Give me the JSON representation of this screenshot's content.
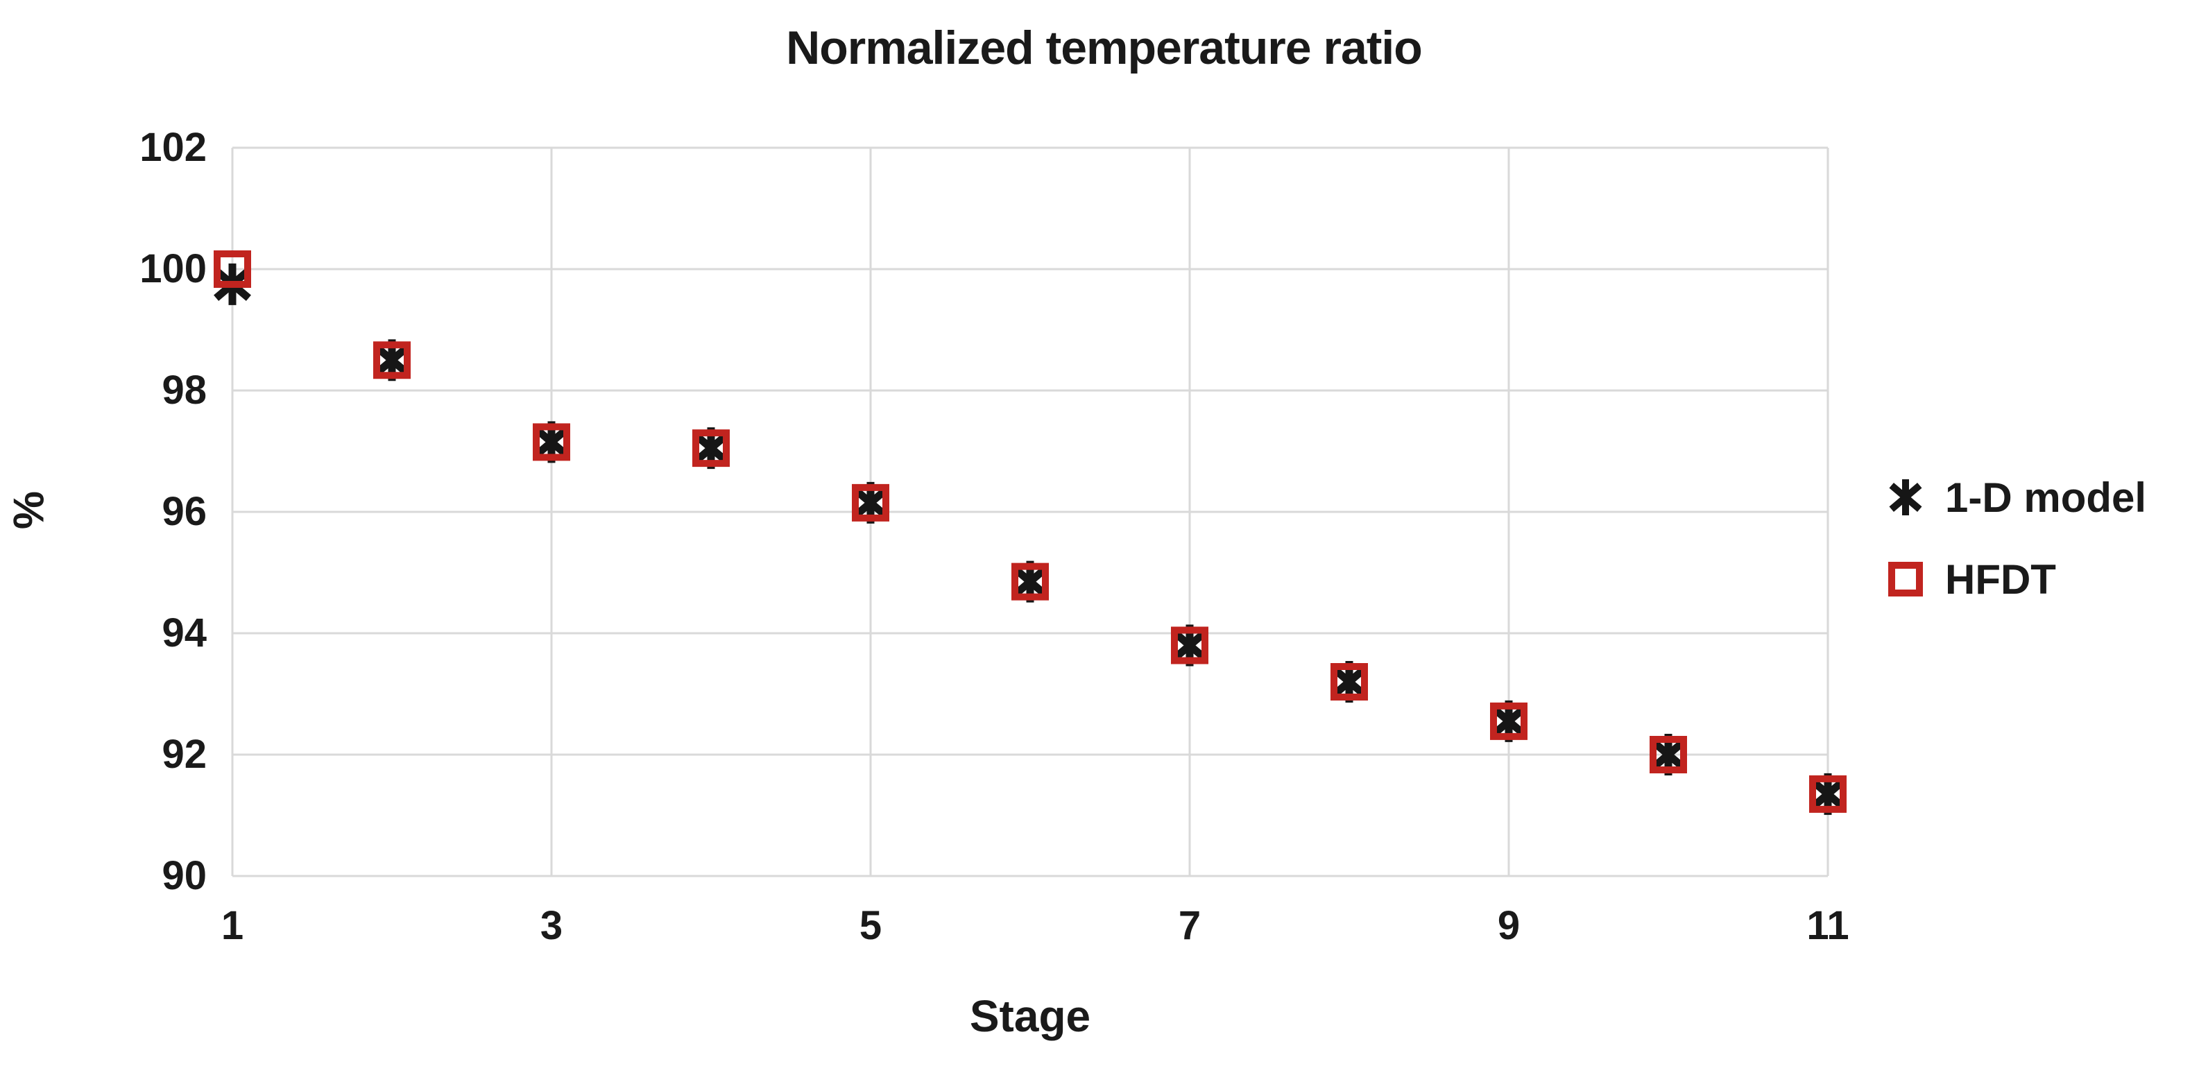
{
  "chart_data": {
    "type": "scatter",
    "title": "Normalized temperature ratio",
    "xlabel": "Stage",
    "ylabel": "%",
    "x": [
      1,
      2,
      3,
      4,
      5,
      6,
      7,
      8,
      9,
      10,
      11
    ],
    "series": [
      {
        "name": "1-D model",
        "marker": "asterisk",
        "color": "#161616",
        "values": [
          99.75,
          98.5,
          97.15,
          97.05,
          96.15,
          94.85,
          93.8,
          93.2,
          92.55,
          92.0,
          91.35
        ]
      },
      {
        "name": "HFDT",
        "marker": "open-square",
        "color": "#c1241f",
        "values": [
          100.0,
          98.5,
          97.15,
          97.05,
          96.15,
          94.85,
          93.8,
          93.2,
          92.55,
          92.0,
          91.35
        ]
      }
    ],
    "xlim": [
      1,
      11
    ],
    "ylim": [
      90,
      102
    ],
    "xticks": [
      1,
      3,
      5,
      7,
      9,
      11
    ],
    "yticks": [
      90,
      92,
      94,
      96,
      98,
      100,
      102
    ],
    "grid": true,
    "gridline_color": "#d9d9d9",
    "background": "#ffffff",
    "text_color": "#1a1a1a",
    "legend_position": "right"
  }
}
